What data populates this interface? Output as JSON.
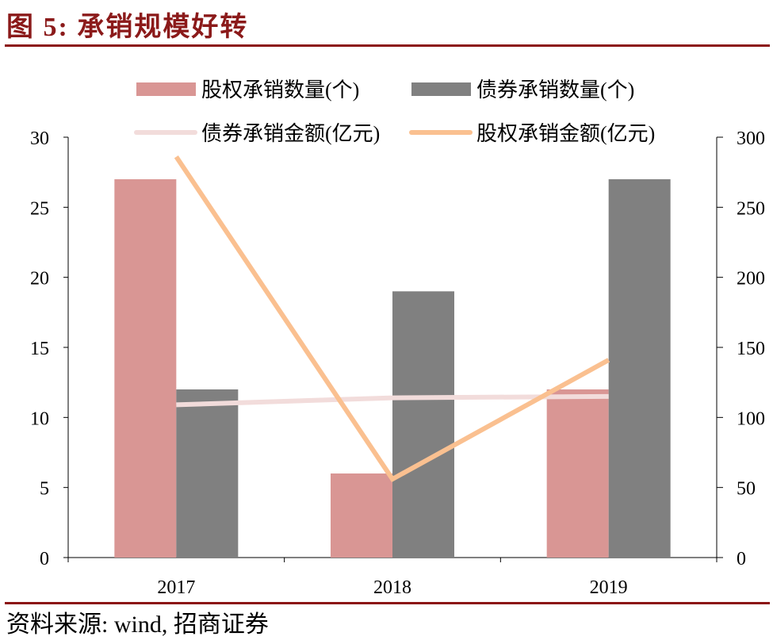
{
  "title": "图 5:  承销规模好转",
  "source": "资料来源:  wind,  招商证券",
  "chart_data": {
    "type": "bar",
    "categories": [
      "2017",
      "2018",
      "2019"
    ],
    "left_axis": {
      "ylim": [
        0,
        30
      ],
      "ticks": [
        0,
        5,
        10,
        15,
        20,
        25,
        30
      ]
    },
    "right_axis": {
      "ylim": [
        0,
        300
      ],
      "ticks": [
        0,
        50,
        100,
        150,
        200,
        250,
        300
      ]
    },
    "grid": false,
    "legend_placement": "top",
    "series": [
      {
        "name": "股权承销数量(个)",
        "kind": "bar",
        "axis": "left",
        "color": "#D99694",
        "values": [
          27,
          6,
          12
        ]
      },
      {
        "name": "债券承销数量(个)",
        "kind": "bar",
        "axis": "left",
        "color": "#808080",
        "values": [
          12,
          19,
          27
        ]
      },
      {
        "name": "债券承销金额(亿元)",
        "kind": "line",
        "axis": "right",
        "color": "#F2DCDB",
        "values": [
          109,
          114,
          115
        ]
      },
      {
        "name": "股权承销金额(亿元)",
        "kind": "line",
        "axis": "right",
        "color": "#FAC090",
        "values": [
          286,
          56,
          141
        ]
      }
    ]
  }
}
